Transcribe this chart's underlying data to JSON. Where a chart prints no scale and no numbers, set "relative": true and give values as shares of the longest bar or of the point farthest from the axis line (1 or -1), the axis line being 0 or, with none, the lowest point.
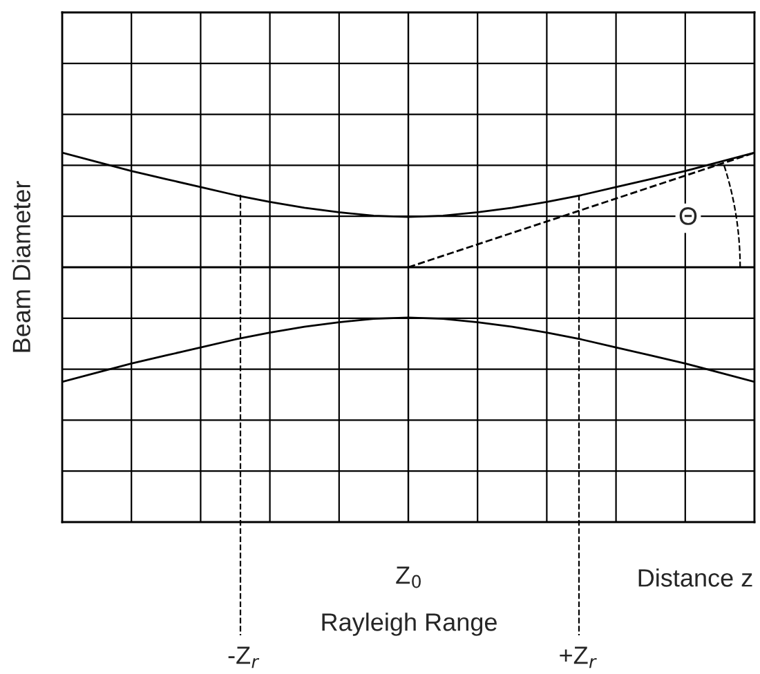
{
  "chart_data": {
    "type": "line",
    "relative": true,
    "ylabel": "Beam Diameter",
    "categories": [
      null,
      null,
      null,
      null,
      null,
      null,
      null,
      null,
      null,
      null,
      null,
      null,
      null,
      null,
      null,
      null,
      null,
      null,
      null,
      null,
      null
    ],
    "series": [
      {
        "color": "#000000",
        "values": [
          1.0,
          0.92,
          0.84,
          0.77,
          0.7,
          0.63,
          0.57,
          0.52,
          0.48,
          0.45,
          0.44,
          0.45,
          0.48,
          0.52,
          0.57,
          0.63,
          0.7,
          0.77,
          0.84,
          0.92,
          1.0
        ]
      },
      {
        "color": "#000000",
        "values": [
          -1.0,
          -0.92,
          -0.84,
          -0.77,
          -0.7,
          -0.63,
          -0.57,
          -0.52,
          -0.48,
          -0.45,
          -0.44,
          -0.45,
          -0.48,
          -0.52,
          -0.57,
          -0.63,
          -0.7,
          -0.77,
          -0.84,
          -0.92,
          -1.0
        ]
      },
      {
        "color": "#000000",
        "line_style": "dashed",
        "values": [
          null,
          null,
          null,
          null,
          null,
          null,
          null,
          null,
          null,
          null,
          0.0,
          0.1,
          0.2,
          0.3,
          0.4,
          0.5,
          0.6,
          0.7,
          0.8,
          0.9,
          1.0
        ]
      }
    ],
    "annotations": [
      "Z$_{0}$",
      "Rayleigh Range",
      "-Z$_{r}$",
      "+Z$_{r}$",
      "Θ",
      "Distance z"
    ],
    "grid": true,
    "line_style": "solid",
    "marker": "none",
    "legend": false
  }
}
